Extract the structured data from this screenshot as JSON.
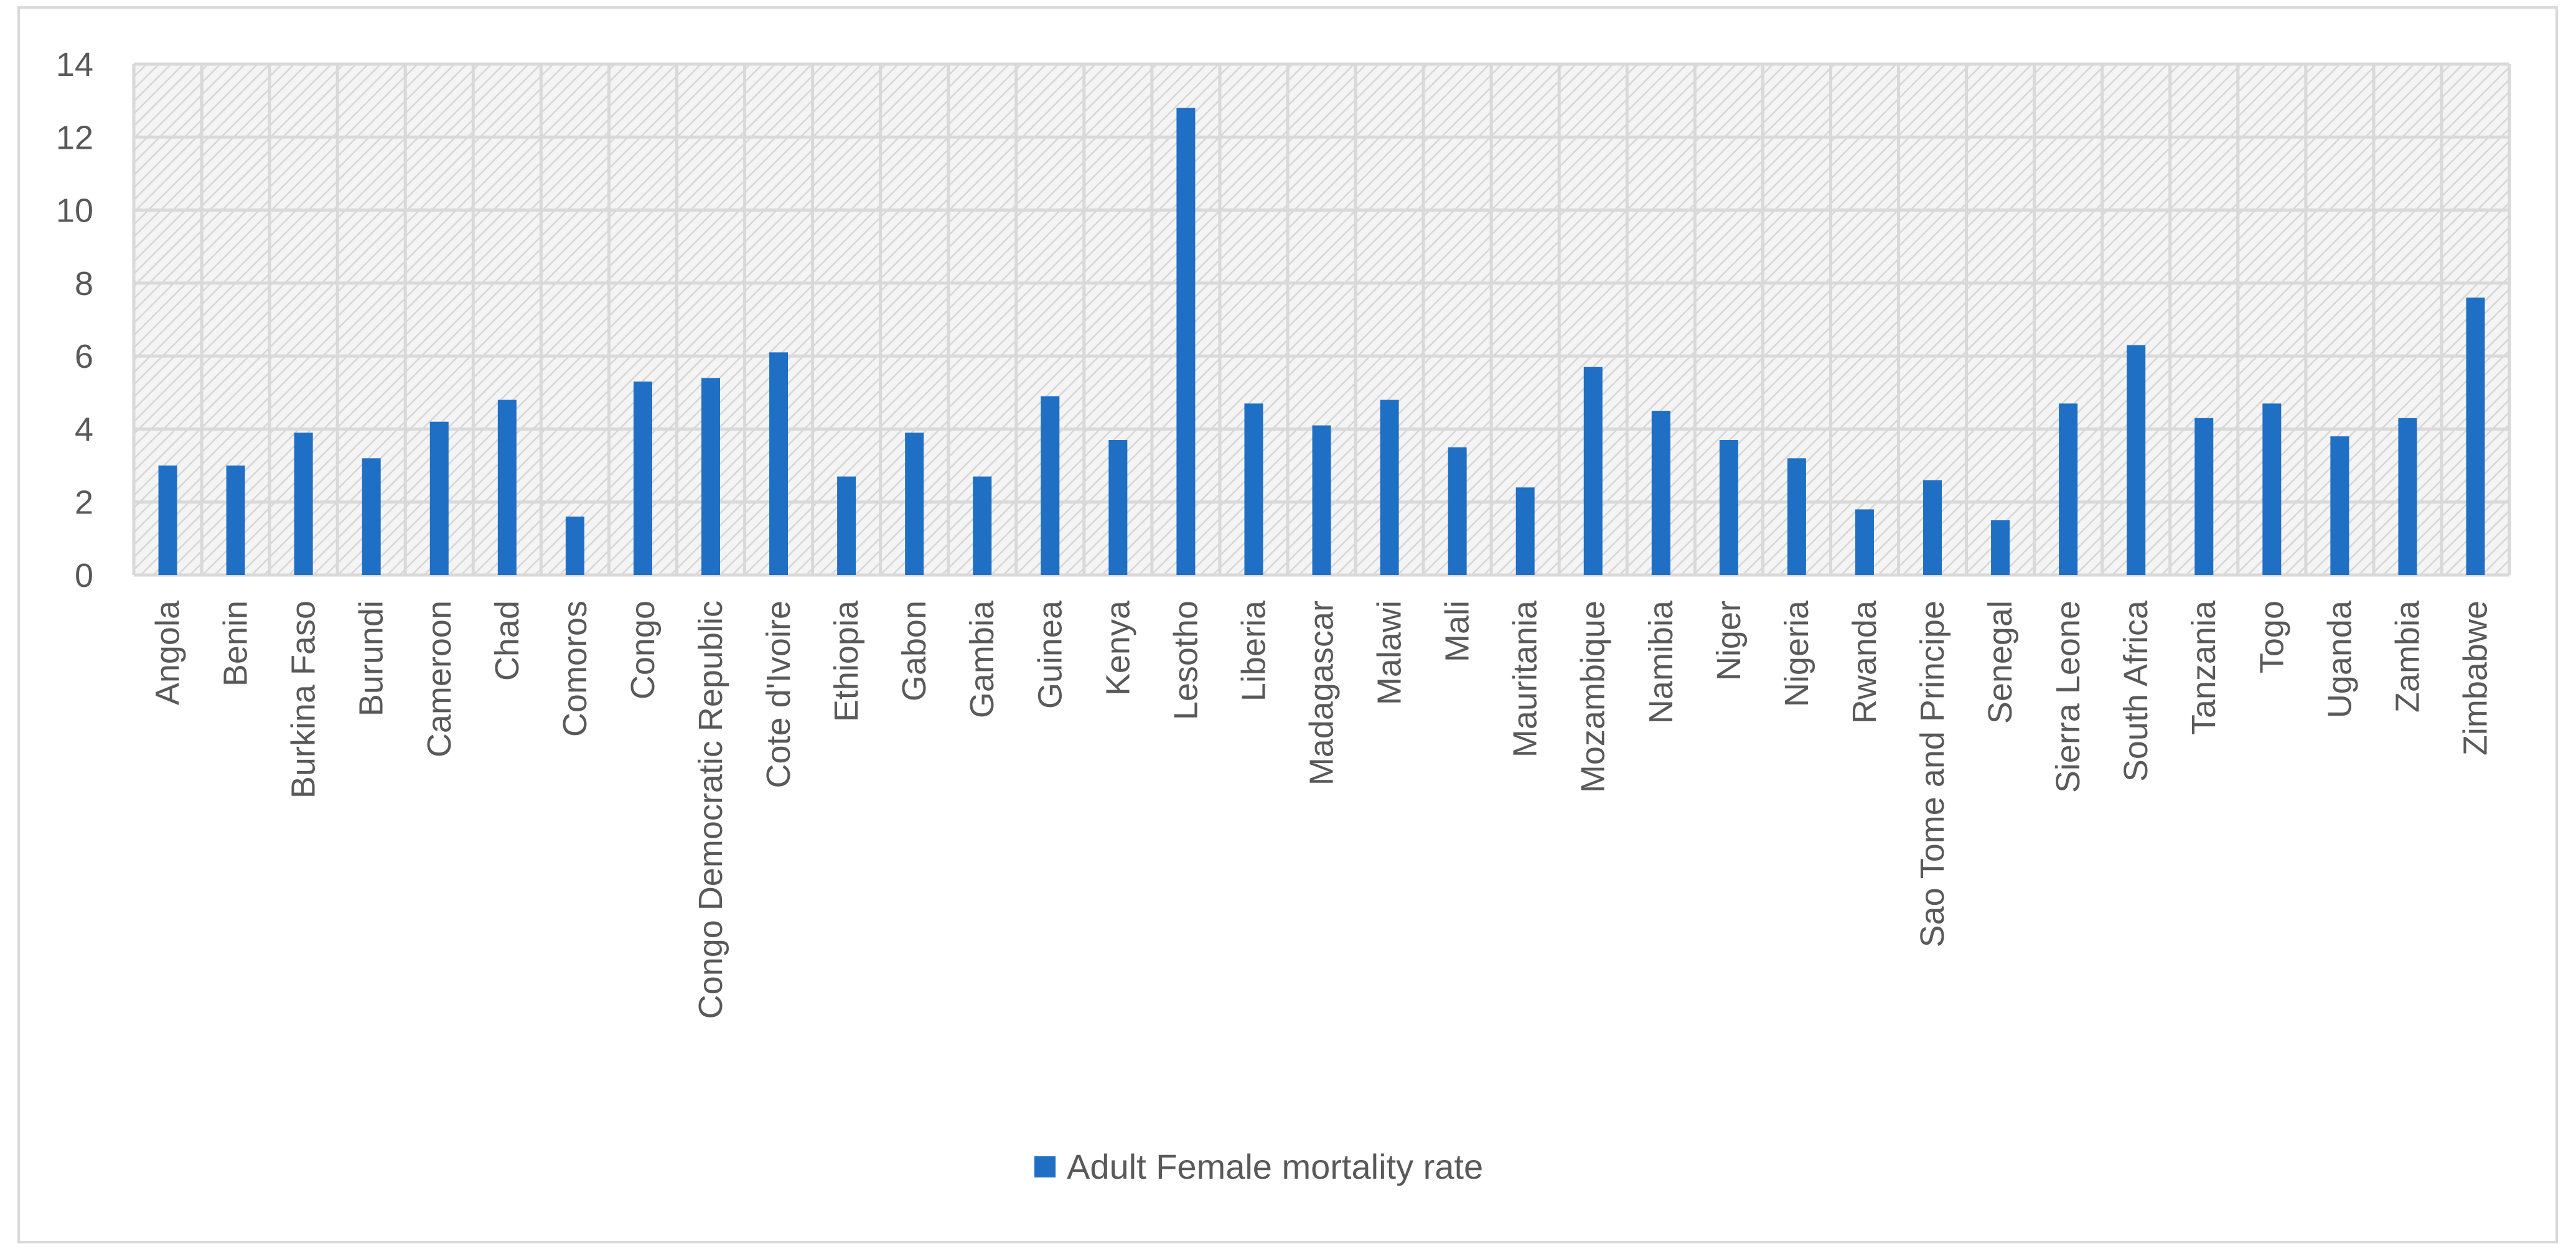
{
  "chart_data": {
    "type": "bar",
    "title": "",
    "xlabel": "",
    "ylabel": "",
    "ylim": [
      0,
      14
    ],
    "yticks": [
      0,
      2,
      4,
      6,
      8,
      10,
      12,
      14
    ],
    "grid": true,
    "legend_position": "bottom",
    "categories": [
      "Angola",
      "Benin",
      "Burkina Faso",
      "Burundi",
      "Cameroon",
      "Chad",
      "Comoros",
      "Congo",
      "Congo Democratic Republic",
      "Cote d'Ivoire",
      "Ethiopia",
      "Gabon",
      "Gambia",
      "Guinea",
      "Kenya",
      "Lesotho",
      "Liberia",
      "Madagascar",
      "Malawi",
      "Mali",
      "Mauritania",
      "Mozambique",
      "Namibia",
      "Niger",
      "Nigeria",
      "Rwanda",
      "Sao Tome and Principe",
      "Senegal",
      "Sierra Leone",
      "South Africa",
      "Tanzania",
      "Togo",
      "Uganda",
      "Zambia",
      "Zimbabwe"
    ],
    "series": [
      {
        "name": "Adult Female mortality rate",
        "color": "#1f6fc5",
        "values": [
          3.0,
          3.0,
          3.9,
          3.2,
          4.2,
          4.8,
          1.6,
          5.3,
          5.4,
          6.1,
          2.7,
          3.9,
          2.7,
          4.9,
          3.7,
          12.8,
          4.7,
          4.1,
          4.8,
          3.5,
          2.4,
          5.7,
          4.5,
          3.7,
          3.2,
          1.8,
          2.6,
          1.5,
          4.7,
          6.3,
          4.3,
          4.7,
          3.8,
          4.3,
          7.6
        ]
      }
    ]
  }
}
